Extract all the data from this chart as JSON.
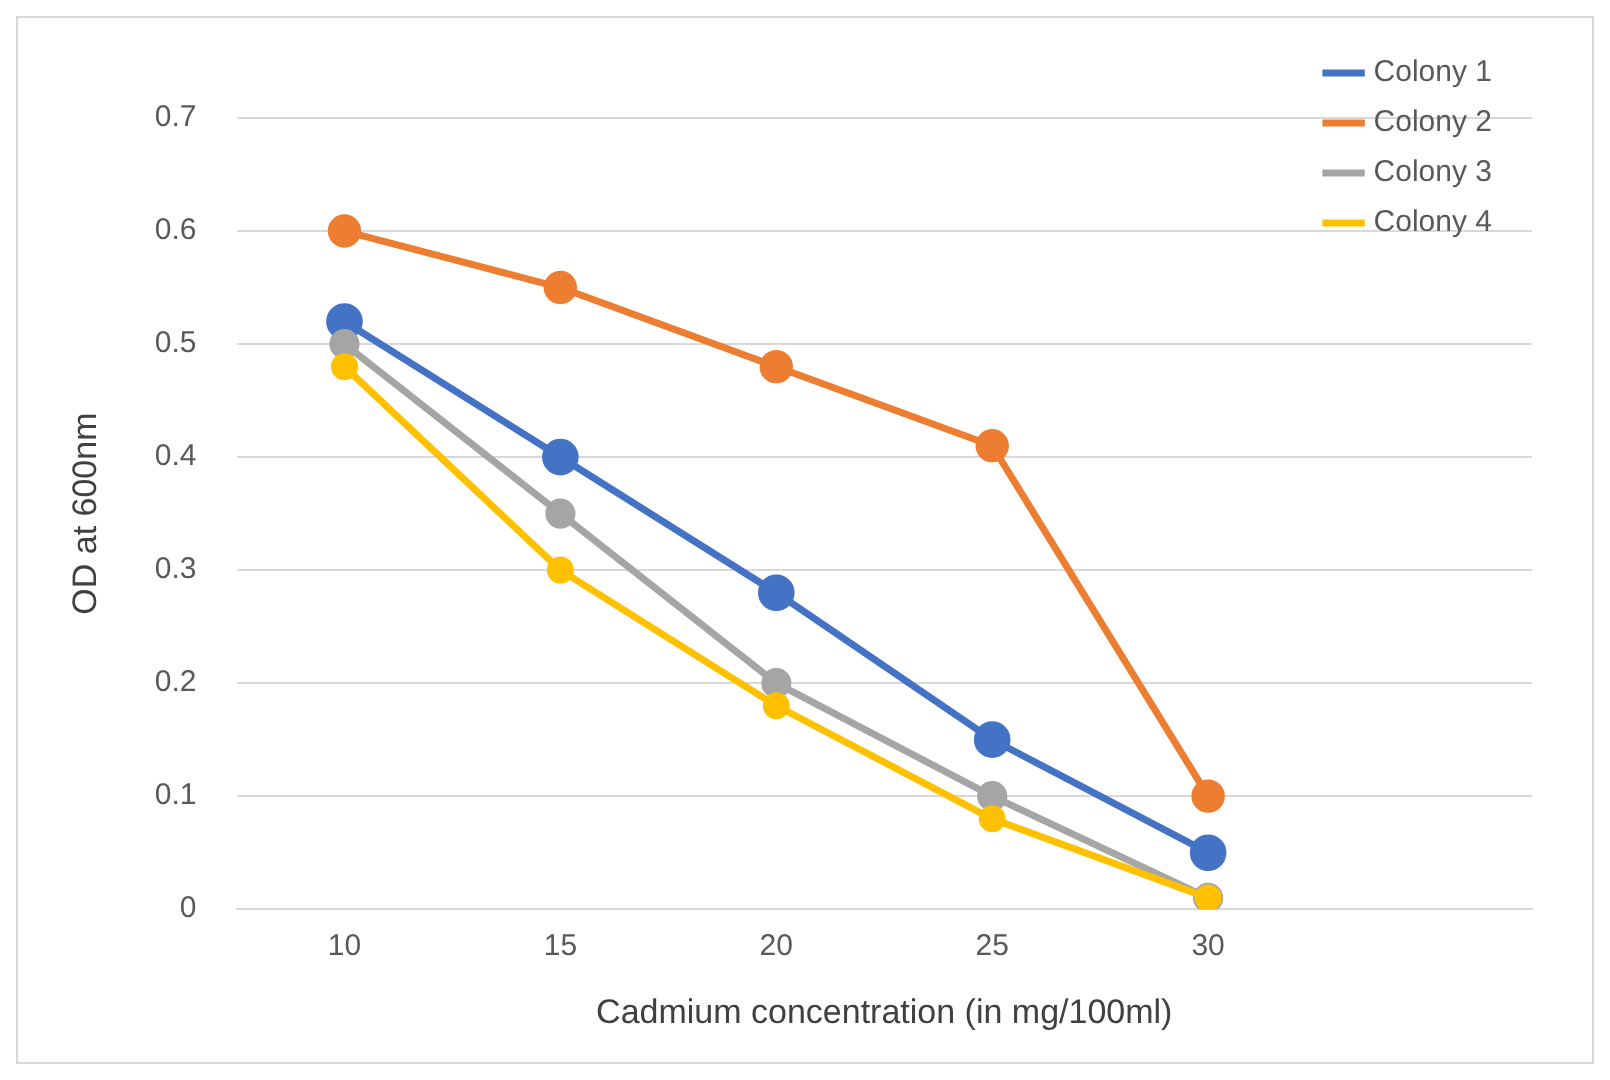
{
  "chart_data": {
    "type": "line",
    "xlabel": "Cadmium concentration (in mg/100ml)",
    "ylabel": "OD at 600nm",
    "categories": [
      "10",
      "15",
      "20",
      "25",
      "30",
      null
    ],
    "series": [
      {
        "name": "Colony 1",
        "color": "#4472c4",
        "values": [
          0.52,
          0.4,
          0.28,
          0.15,
          0.05,
          null
        ]
      },
      {
        "name": "Colony 2",
        "color": "#ed7d31",
        "values": [
          0.6,
          0.55,
          0.48,
          0.41,
          0.1,
          null
        ]
      },
      {
        "name": "Colony 3",
        "color": "#a5a5a5",
        "values": [
          0.5,
          0.35,
          0.2,
          0.1,
          0.01,
          null
        ]
      },
      {
        "name": "Colony 4",
        "color": "#ffc000",
        "values": [
          0.48,
          0.3,
          0.18,
          0.08,
          0.01,
          null
        ]
      }
    ],
    "ylim": [
      0,
      0.7
    ],
    "yticks": [
      0,
      0.1,
      0.2,
      0.3,
      0.4,
      0.5,
      0.6,
      0.7
    ],
    "grid": "y",
    "legend": "top right",
    "marker": "circle",
    "line_style": "solid"
  }
}
